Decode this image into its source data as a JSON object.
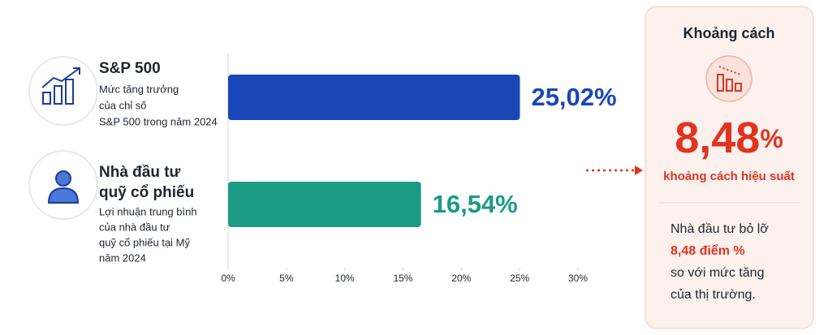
{
  "chart_data": {
    "type": "bar",
    "orientation": "horizontal",
    "categories": [
      "S&P 500",
      "Nhà đầu tư quỹ cổ phiếu"
    ],
    "descriptions": [
      [
        "Mức tăng trưởng",
        "của chỉ số",
        "S&P 500 trong năm 2024"
      ],
      [
        "Lợi nhuận trung bình",
        "của nhà đầu tư",
        "quỹ cổ phiếu tại Mỹ",
        "năm 2024"
      ]
    ],
    "values": [
      25.02,
      16.54
    ],
    "value_labels": [
      "25,02%",
      "16,54%"
    ],
    "colors": [
      "#1a47b8",
      "#1c9a86"
    ],
    "xlim": [
      0,
      30
    ],
    "xticks": [
      {
        "value": 0,
        "label": "0%"
      },
      {
        "value": 5,
        "label": "5%"
      },
      {
        "value": 10,
        "label": "10%"
      },
      {
        "value": 15,
        "label": "15%"
      },
      {
        "value": 20,
        "label": "20%"
      },
      {
        "value": 25,
        "label": "25%"
      },
      {
        "value": 30,
        "label": "30%"
      }
    ],
    "grid": false
  },
  "gap_panel": {
    "title": "Khoảng cách",
    "gap_number": "8,48",
    "gap_unit": "%",
    "subtitle": "khoảng cách hiệu suất",
    "note": [
      "Nhà đầu tư bỏ lỡ",
      "8,48 điểm %",
      "so với mức tăng",
      "của thị trường."
    ]
  }
}
